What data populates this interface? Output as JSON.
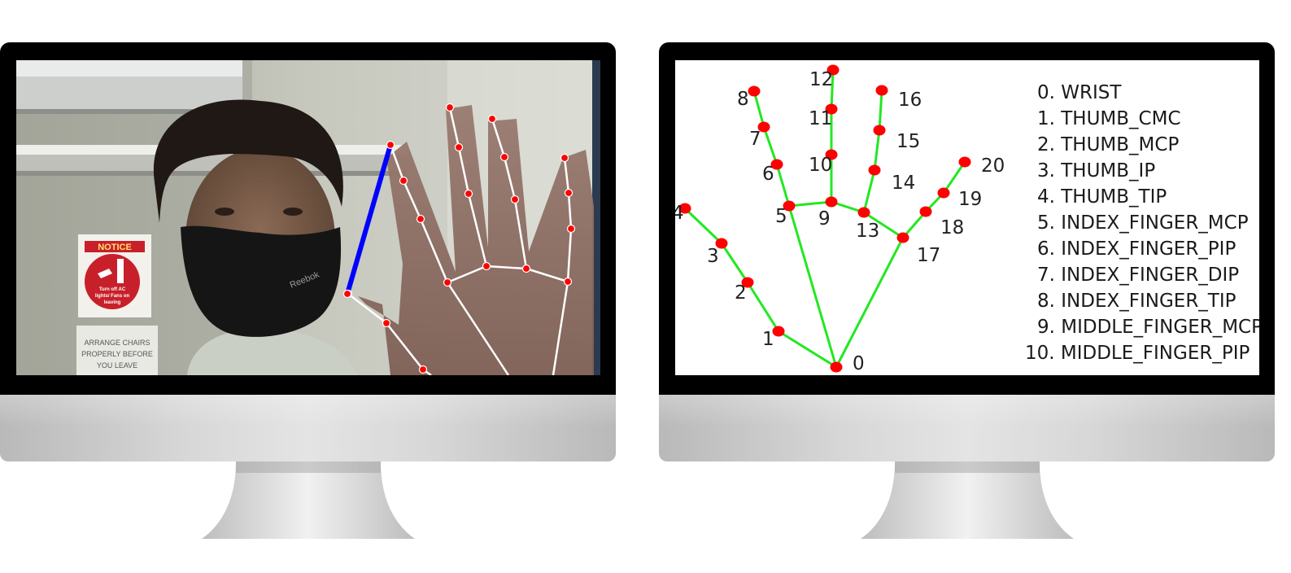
{
  "webcam_notice": {
    "sign_title": "NOTICE",
    "sign_text": [
      "Turn off AC",
      "lights/ Fans on",
      "leaving"
    ],
    "board_text": [
      "ARRANGE CHAIRS",
      "PROPERLY BEFORE",
      "YOU LEAVE"
    ],
    "mask_brand": "Reebok"
  },
  "landmark_legend": [
    "0. WRIST",
    "1. THUMB_CMC",
    "2. THUMB_MCP",
    "3. THUMB_IP",
    "4. THUMB_TIP",
    "5. INDEX_FINGER_MCP",
    "6. INDEX_FINGER_PIP",
    "7. INDEX_FINGER_DIP",
    "8. INDEX_FINGER_TIP",
    "9. MIDDLE_FINGER_MCP",
    "10. MIDDLE_FINGER_PIP"
  ],
  "landmark_numbers": [
    "0",
    "1",
    "2",
    "3",
    "4",
    "5",
    "6",
    "7",
    "8",
    "9",
    "10",
    "11",
    "12",
    "13",
    "14",
    "15",
    "16",
    "17",
    "18",
    "19",
    "20"
  ],
  "colors": {
    "skeleton_line": "#22e822",
    "landmark_dot": "#ff0000",
    "pinch_line": "#0000ff",
    "webcam_skeleton": "#ffffff"
  }
}
